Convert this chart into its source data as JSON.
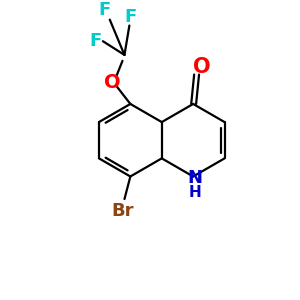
{
  "bg_color": "#ffffff",
  "bond_color": "#000000",
  "atom_colors": {
    "O": "#ff0000",
    "N": "#0000cc",
    "F": "#00cccc",
    "Br": "#8b4513"
  },
  "figsize": [
    3.0,
    3.0
  ],
  "dpi": 100,
  "lw": 1.6
}
